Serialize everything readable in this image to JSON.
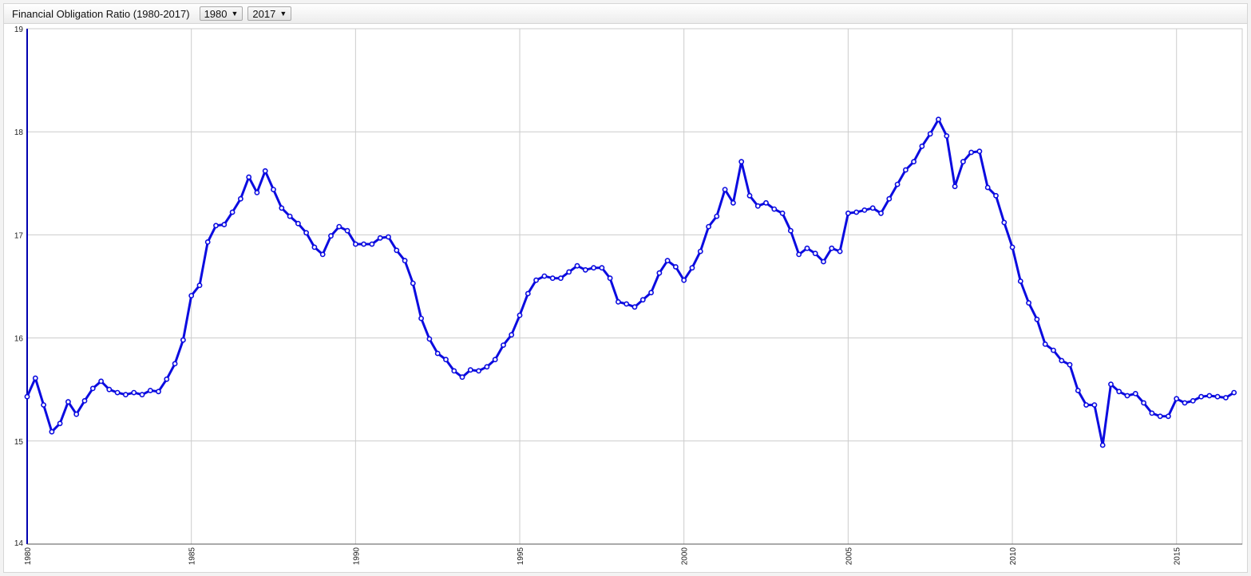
{
  "header": {
    "title": "Financial Obligation Ratio (1980-2017)",
    "start_year": "1980",
    "end_year": "2017",
    "dropdown_icon": "triangle-down-icon"
  },
  "colors": {
    "line": "#0b0be0",
    "grid": "#cccccc",
    "axis": "#0000b0",
    "marker_fill": "#ffffff"
  },
  "chart_data": {
    "type": "line",
    "title": "Financial Obligation Ratio (1980-2017)",
    "xlabel": "",
    "ylabel": "",
    "xlim": [
      1980,
      2017
    ],
    "ylim": [
      14,
      19
    ],
    "x_ticks": [
      "1980",
      "1985",
      "1990",
      "1995",
      "2000",
      "2005",
      "2010",
      "2015"
    ],
    "y_ticks": [
      "14",
      "15",
      "16",
      "17",
      "18",
      "19"
    ],
    "grid": true,
    "markers": "circle",
    "series": [
      {
        "x": [
          1980.0,
          1980.25,
          1980.5,
          1980.75,
          1981.0,
          1981.25,
          1981.5,
          1981.75,
          1982.0,
          1982.25,
          1982.5,
          1982.75,
          1983.0,
          1983.25,
          1983.5,
          1983.75,
          1984.0,
          1984.25,
          1984.5,
          1984.75,
          1985.0,
          1985.25,
          1985.5,
          1985.75,
          1986.0,
          1986.25,
          1986.5,
          1986.75,
          1987.0,
          1987.25,
          1987.5,
          1987.75,
          1988.0,
          1988.25,
          1988.5,
          1988.75,
          1989.0,
          1989.25,
          1989.5,
          1989.75,
          1990.0,
          1990.25,
          1990.5,
          1990.75,
          1991.0,
          1991.25,
          1991.5,
          1991.75,
          1992.0,
          1992.25,
          1992.5,
          1992.75,
          1993.0,
          1993.25,
          1993.5,
          1993.75,
          1994.0,
          1994.25,
          1994.5,
          1994.75,
          1995.0,
          1995.25,
          1995.5,
          1995.75,
          1996.0,
          1996.25,
          1996.5,
          1996.75,
          1997.0,
          1997.25,
          1997.5,
          1997.75,
          1998.0,
          1998.25,
          1998.5,
          1998.75,
          1999.0,
          1999.25,
          1999.5,
          1999.75,
          2000.0,
          2000.25,
          2000.5,
          2000.75,
          2001.0,
          2001.25,
          2001.5,
          2001.75,
          2002.0,
          2002.25,
          2002.5,
          2002.75,
          2003.0,
          2003.25,
          2003.5,
          2003.75,
          2004.0,
          2004.25,
          2004.5,
          2004.75,
          2005.0,
          2005.25,
          2005.5,
          2005.75,
          2006.0,
          2006.25,
          2006.5,
          2006.75,
          2007.0,
          2007.25,
          2007.5,
          2007.75,
          2008.0,
          2008.25,
          2008.5,
          2008.75,
          2009.0,
          2009.25,
          2009.5,
          2009.75,
          2010.0,
          2010.25,
          2010.5,
          2010.75,
          2011.0,
          2011.25,
          2011.5,
          2011.75,
          2012.0,
          2012.25,
          2012.5,
          2012.75,
          2013.0,
          2013.25,
          2013.5,
          2013.75,
          2014.0,
          2014.25,
          2014.5,
          2014.75,
          2015.0,
          2015.25,
          2015.5,
          2015.75,
          2016.0,
          2016.25,
          2016.5,
          2016.75
        ],
        "values": [
          15.43,
          15.61,
          15.35,
          15.09,
          15.17,
          15.38,
          15.26,
          15.39,
          15.51,
          15.58,
          15.5,
          15.47,
          15.45,
          15.47,
          15.45,
          15.49,
          15.48,
          15.6,
          15.75,
          15.98,
          16.41,
          16.51,
          16.93,
          17.09,
          17.1,
          17.22,
          17.35,
          17.56,
          17.41,
          17.62,
          17.44,
          17.26,
          17.18,
          17.11,
          17.02,
          16.88,
          16.81,
          16.99,
          17.08,
          17.04,
          16.91,
          16.91,
          16.91,
          16.97,
          16.98,
          16.85,
          16.75,
          16.53,
          16.19,
          15.99,
          15.85,
          15.79,
          15.68,
          15.62,
          15.69,
          15.68,
          15.72,
          15.79,
          15.93,
          16.03,
          16.22,
          16.43,
          16.56,
          16.6,
          16.58,
          16.58,
          16.64,
          16.7,
          16.66,
          16.68,
          16.68,
          16.58,
          16.35,
          16.33,
          16.3,
          16.37,
          16.44,
          16.63,
          16.75,
          16.69,
          16.56,
          16.68,
          16.84,
          17.08,
          17.18,
          17.44,
          17.31,
          17.71,
          17.38,
          17.28,
          17.31,
          17.25,
          17.21,
          17.04,
          16.81,
          16.87,
          16.82,
          16.74,
          16.87,
          16.84,
          17.21,
          17.22,
          17.24,
          17.26,
          17.21,
          17.35,
          17.49,
          17.63,
          17.71,
          17.86,
          17.98,
          18.12,
          17.96,
          17.47,
          17.71,
          17.8,
          17.81,
          17.46,
          17.38,
          17.12,
          16.88,
          16.55,
          16.34,
          16.18,
          15.94,
          15.88,
          15.78,
          15.74,
          15.49,
          15.35,
          15.35,
          14.96,
          15.55,
          15.48,
          15.44,
          15.46,
          15.37,
          15.27,
          15.24,
          15.24,
          15.41,
          15.37,
          15.39,
          15.43,
          15.44,
          15.43,
          15.42,
          15.47
        ]
      }
    ]
  }
}
